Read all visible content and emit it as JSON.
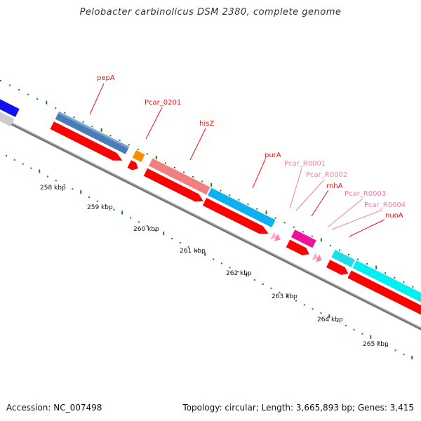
{
  "title": "Pelobacter carbinolicus DSM 2380, complete genome",
  "footer": {
    "accession": "Accession: NC_007498",
    "summary": "Topology: circular; Length: 3,665,893 bp; Genes: 3,415"
  },
  "colors": {
    "label_red": "#ee1111",
    "label_pink": "#f080a8",
    "strand_red": "#ff0000",
    "tick_green": "#1a7f1a",
    "backbone": "#777777"
  },
  "ticks": [
    "258 kbp",
    "259 kbp",
    "260 kbp",
    "261 kbp",
    "262 kbp",
    "263 kbp",
    "264 kbp",
    "265 kbp"
  ],
  "gene_labels": [
    {
      "name": "pepA",
      "tone": "red"
    },
    {
      "name": "Pcar_0201",
      "tone": "red"
    },
    {
      "name": "hisZ",
      "tone": "red"
    },
    {
      "name": "purA",
      "tone": "red"
    },
    {
      "name": "Pcar_R0001",
      "tone": "pink"
    },
    {
      "name": "Pcar_R0002",
      "tone": "pink"
    },
    {
      "name": "rnhA",
      "tone": "red"
    },
    {
      "name": "Pcar_R0003",
      "tone": "pink"
    },
    {
      "name": "Pcar_R0004",
      "tone": "pink"
    },
    {
      "name": "nuoA",
      "tone": "red"
    }
  ]
}
